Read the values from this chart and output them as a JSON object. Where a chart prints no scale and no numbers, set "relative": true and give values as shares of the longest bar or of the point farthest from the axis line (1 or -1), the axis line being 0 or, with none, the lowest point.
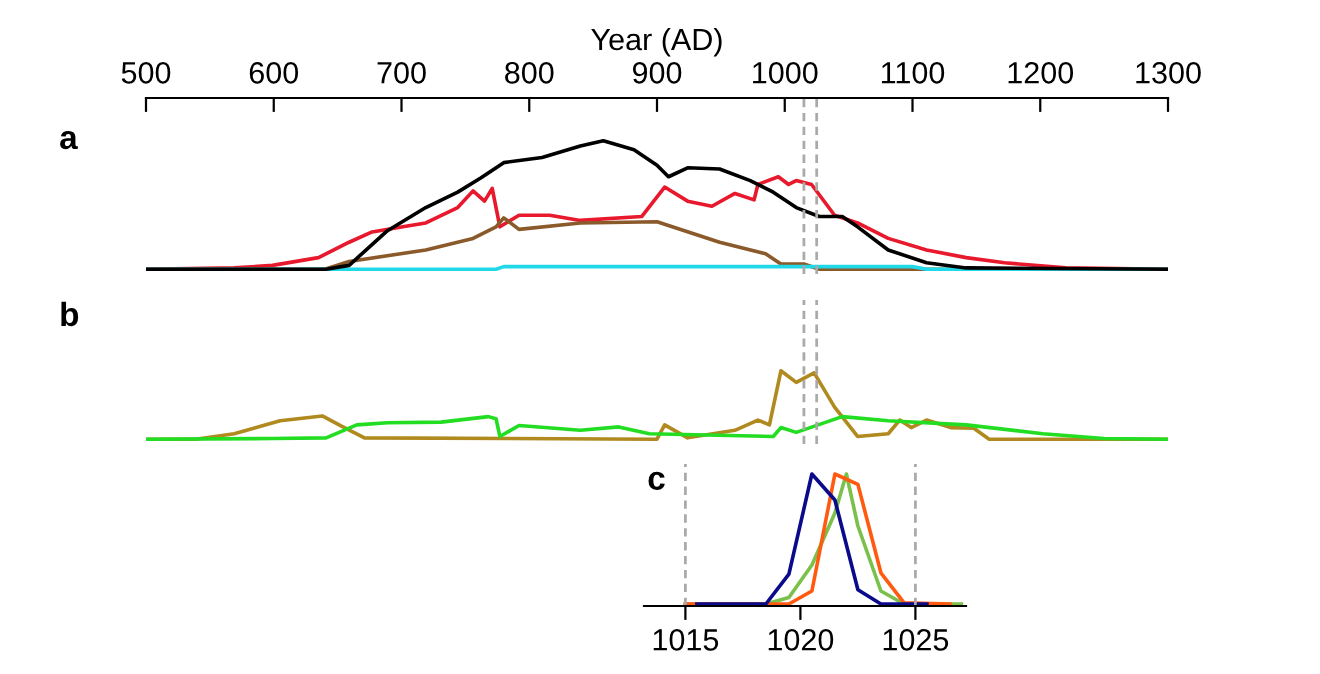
{
  "chart_data": [
    {
      "type": "line",
      "title": "a",
      "xlabel": "Year (AD)",
      "relative": true,
      "xlim": [
        500,
        1300
      ],
      "xticks": [
        500,
        600,
        700,
        800,
        900,
        1000,
        1100,
        1200,
        1300
      ],
      "tick_labels": "x",
      "grid": false,
      "legend": false,
      "ref_lines": [
        {
          "axis": "x",
          "value": 1015,
          "color": "#aaaaaa",
          "line_style": "dashed"
        },
        {
          "axis": "x",
          "value": 1025,
          "color": "#aaaaaa",
          "line_style": "dashed"
        }
      ],
      "series": [
        {
          "color": "#e8192c",
          "x": [
            500,
            569,
            599,
            635,
            659,
            677,
            701,
            719,
            744,
            756,
            765,
            771,
            777,
            792,
            816,
            840,
            888,
            906,
            924,
            943,
            961,
            976,
            979,
            995,
            1003,
            1009,
            1021,
            1039,
            1057,
            1081,
            1111,
            1142,
            1172,
            1220,
            1300
          ],
          "values": [
            0,
            0.01,
            0.03,
            0.09,
            0.21,
            0.29,
            0.33,
            0.36,
            0.48,
            0.61,
            0.53,
            0.63,
            0.33,
            0.42,
            0.42,
            0.38,
            0.41,
            0.64,
            0.53,
            0.49,
            0.59,
            0.54,
            0.66,
            0.72,
            0.66,
            0.69,
            0.66,
            0.42,
            0.36,
            0.24,
            0.15,
            0.09,
            0.05,
            0.01,
            0
          ]
        },
        {
          "color": "#8b5a2b",
          "x": [
            500,
            640,
            659,
            719,
            756,
            774,
            780,
            792,
            840,
            900,
            949,
            985,
            997,
            1015,
            1027,
            1300
          ],
          "values": [
            0,
            0,
            0.06,
            0.15,
            0.24,
            0.33,
            0.4,
            0.31,
            0.36,
            0.37,
            0.21,
            0.12,
            0.04,
            0.04,
            0,
            0
          ]
        },
        {
          "color": "#20d8e8",
          "x": [
            500,
            774,
            780,
            1100,
            1111,
            1300
          ],
          "values": [
            0,
            0,
            0.02,
            0.02,
            0,
            0
          ]
        },
        {
          "color": "#000000",
          "x": [
            500,
            641,
            659,
            689,
            719,
            744,
            762,
            780,
            810,
            840,
            858,
            882,
            900,
            909,
            924,
            949,
            973,
            991,
            1009,
            1027,
            1045,
            1057,
            1081,
            1111,
            1142,
            1300
          ],
          "values": [
            0,
            0,
            0.03,
            0.3,
            0.48,
            0.6,
            0.71,
            0.83,
            0.87,
            0.96,
            1,
            0.93,
            0.81,
            0.72,
            0.79,
            0.78,
            0.69,
            0.6,
            0.48,
            0.41,
            0.41,
            0.33,
            0.15,
            0.05,
            0.01,
            0
          ]
        }
      ]
    },
    {
      "type": "line",
      "title": "b",
      "relative": true,
      "xlim": [
        500,
        1300
      ],
      "tick_labels": false,
      "grid": false,
      "legend": false,
      "ref_lines": [
        {
          "axis": "x",
          "value": 1015,
          "color": "#aaaaaa",
          "line_style": "dashed"
        },
        {
          "axis": "x",
          "value": 1025,
          "color": "#aaaaaa",
          "line_style": "dashed"
        }
      ],
      "series": [
        {
          "color": "#b08a1e",
          "x": [
            500,
            539,
            569,
            605,
            638,
            653,
            671,
            900,
            906,
            924,
            961,
            979,
            988,
            997,
            1009,
            1023,
            1039,
            1057,
            1081,
            1090,
            1099,
            1111,
            1130,
            1148,
            1160,
            1300
          ],
          "values": [
            0,
            0,
            0.08,
            0.27,
            0.34,
            0.19,
            0.02,
            0,
            0.21,
            0.02,
            0.13,
            0.28,
            0.21,
            1,
            0.83,
            0.97,
            0.47,
            0.04,
            0.08,
            0.28,
            0.17,
            0.28,
            0.17,
            0.16,
            0,
            0
          ]
        },
        {
          "color": "#22dd22",
          "x": [
            500,
            599,
            641,
            665,
            689,
            731,
            768,
            774,
            777,
            792,
            840,
            870,
            894,
            991,
            997,
            1009,
            1045,
            1081,
            1142,
            1202,
            1250,
            1300
          ],
          "values": [
            0,
            0.01,
            0.02,
            0.21,
            0.24,
            0.25,
            0.33,
            0.3,
            0.04,
            0.2,
            0.13,
            0.18,
            0.08,
            0.04,
            0.17,
            0.1,
            0.33,
            0.27,
            0.21,
            0.08,
            0.01,
            0
          ]
        }
      ]
    },
    {
      "type": "line",
      "title": "c",
      "relative": true,
      "xlim": [
        1013.2,
        1027.2
      ],
      "xticks": [
        1015,
        1020,
        1025
      ],
      "tick_labels": "x",
      "grid": false,
      "legend": false,
      "ref_lines": [
        {
          "axis": "x",
          "value": 1015,
          "color": "#aaaaaa",
          "line_style": "dashed"
        },
        {
          "axis": "x",
          "value": 1025,
          "color": "#aaaaaa",
          "line_style": "dashed"
        }
      ],
      "series": [
        {
          "color": "#7ac04a",
          "x": [
            1015,
            1018.5,
            1019.5,
            1020.5,
            1021.5,
            1022,
            1022.5,
            1023.5,
            1024.5,
            1027
          ],
          "values": [
            0,
            0,
            0.05,
            0.3,
            0.7,
            1,
            0.6,
            0.1,
            0,
            0
          ]
        },
        {
          "color": "#ff5a10",
          "x": [
            1015,
            1019.5,
            1020.5,
            1021.5,
            1022.5,
            1023.5,
            1024.5,
            1026.5
          ],
          "values": [
            0,
            0,
            0.1,
            1,
            0.92,
            0.24,
            0.01,
            0
          ]
        },
        {
          "color": "#0a0a8a",
          "x": [
            1015.5,
            1018.5,
            1019.5,
            1020.5,
            1021.5,
            1022.5,
            1023.5,
            1025.5
          ],
          "values": [
            0,
            0,
            0.23,
            1,
            0.8,
            0.11,
            0,
            0
          ]
        }
      ]
    }
  ]
}
